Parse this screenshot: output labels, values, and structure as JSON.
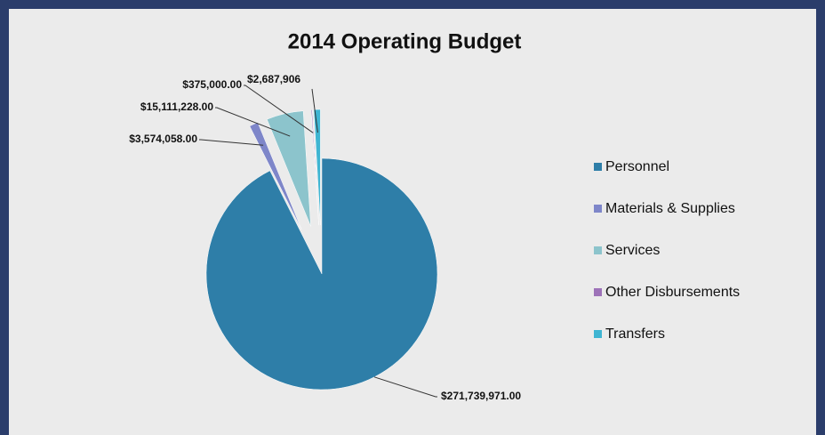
{
  "chart_data": {
    "type": "pie",
    "title": "2014 Operating Budget",
    "categories": [
      "Personnel",
      "Materials & Supplies",
      "Services",
      "Other Disbursements",
      "Transfers"
    ],
    "values": [
      271739971.0,
      3574058.0,
      15111228.0,
      375000.0,
      2687906
    ],
    "value_labels": [
      "$271,739,971.00",
      "$3,574,058.00",
      "$15,111,228.00",
      "$375,000.00",
      "$2,687,906"
    ],
    "colors": [
      "#2e7ea8",
      "#7e86c9",
      "#8cc4cc",
      "#9d72b8",
      "#3fb5d2"
    ],
    "legend": "right"
  }
}
